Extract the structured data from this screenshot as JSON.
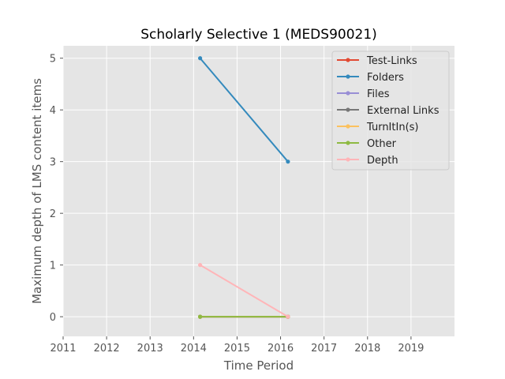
{
  "chart_data": {
    "type": "line",
    "title": "Scholarly Selective 1 (MEDS90021)",
    "xlabel": "Time Period",
    "ylabel": "Maximum depth of LMS content items",
    "xlim": [
      2011,
      2020
    ],
    "ylim": [
      -0.38,
      5.24
    ],
    "xticks": [
      2011,
      2012,
      2013,
      2014,
      2015,
      2016,
      2017,
      2018,
      2019
    ],
    "yticks": [
      0,
      1,
      2,
      3,
      4,
      5
    ],
    "grid": true,
    "background": "#e5e5e5",
    "legend_position": "upper right",
    "series": [
      {
        "name": "Test-Links",
        "color": "#e24a33",
        "x": [
          2014.15,
          2016.17
        ],
        "y": [
          0,
          0
        ]
      },
      {
        "name": "Folders",
        "color": "#348abd",
        "x": [
          2014.15,
          2016.17
        ],
        "y": [
          5,
          3
        ]
      },
      {
        "name": "Files",
        "color": "#988ed5",
        "x": [
          2014.15,
          2016.17
        ],
        "y": [
          0,
          0
        ]
      },
      {
        "name": "External Links",
        "color": "#777777",
        "x": [
          2014.15,
          2016.17
        ],
        "y": [
          0,
          0
        ]
      },
      {
        "name": "TurnItIn(s)",
        "color": "#fbc15e",
        "x": [
          2014.15,
          2016.17
        ],
        "y": [
          0,
          0
        ]
      },
      {
        "name": "Other",
        "color": "#8eba42",
        "x": [
          2014.15,
          2016.17
        ],
        "y": [
          0,
          0
        ]
      },
      {
        "name": "Depth",
        "color": "#ffb5b8",
        "x": [
          2014.15,
          2016.17
        ],
        "y": [
          1,
          0
        ]
      }
    ]
  }
}
